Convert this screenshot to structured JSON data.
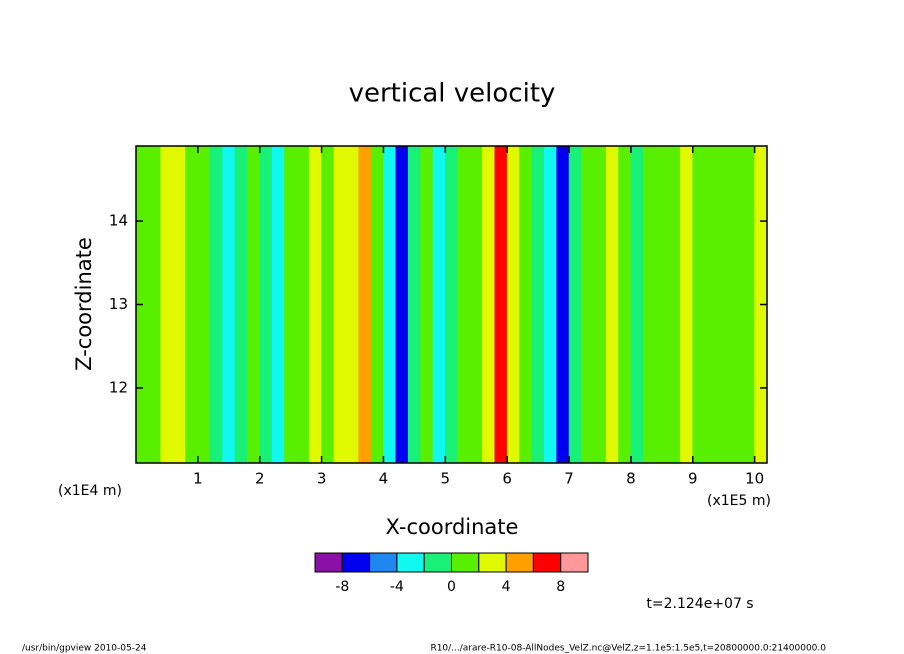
{
  "chart_data": {
    "type": "heatmap",
    "title": "vertical velocity",
    "x_label": "X-coordinate",
    "y_label": "Z-coordinate",
    "y_unit": "(x1E4 m)",
    "x_unit": "(x1E5 m)",
    "time_note": "t=2.124e+07 s",
    "footer_left": "/usr/bin/gpview  2010-05-24",
    "footer_right": "R10/.../arare-R10-08-AllNodes_VelZ.nc@VelZ,z=1.1e5:1.5e5,t=20800000.0:21400000.0",
    "xlim": [
      0,
      10.2
    ],
    "ylim": [
      11.1,
      14.9
    ],
    "xticks": [
      1,
      2,
      3,
      4,
      5,
      6,
      7,
      8,
      9,
      10
    ],
    "yticks": [
      12,
      13,
      14
    ],
    "x": [
      0.1,
      0.3,
      0.5,
      0.7,
      0.9,
      1.1,
      1.3,
      1.5,
      1.7,
      1.9,
      2.1,
      2.3,
      2.5,
      2.7,
      2.9,
      3.1,
      3.3,
      3.5,
      3.7,
      3.9,
      4.1,
      4.3,
      4.5,
      4.7,
      4.9,
      5.1,
      5.3,
      5.5,
      5.7,
      5.9,
      6.1,
      6.3,
      6.5,
      6.7,
      6.9,
      7.1,
      7.3,
      7.5,
      7.7,
      7.9,
      8.1,
      8.3,
      8.5,
      8.7,
      8.9,
      9.1,
      9.3,
      9.5,
      9.7,
      9.9,
      10.1
    ],
    "values": [
      0.5,
      1,
      2,
      3,
      1,
      0.5,
      -2,
      -2.5,
      -1,
      0.5,
      -1.5,
      -2.5,
      0.5,
      1,
      2.5,
      1.5,
      3.5,
      3,
      4.5,
      1,
      -3,
      -7,
      -1.5,
      0.5,
      -3,
      -1,
      0.5,
      1.5,
      3.5,
      6.5,
      3,
      0.5,
      -2,
      -2.5,
      -7,
      -1,
      0.5,
      1.5,
      3,
      1,
      -2,
      0.5,
      1,
      0.5,
      2.5,
      1,
      0.5,
      1.5,
      0.5,
      1,
      3
    ],
    "colorbar": {
      "levels": [
        -10,
        -8,
        -6,
        -4,
        -2,
        0,
        2,
        4,
        6,
        8,
        10
      ],
      "colors": [
        "#8a10a8",
        "#0000f0",
        "#1e88f0",
        "#10f8f0",
        "#18f078",
        "#58f000",
        "#e0f800",
        "#ffa000",
        "#ff0000",
        "#ff9898"
      ],
      "ticks": [
        -8,
        -4,
        0,
        4,
        8
      ]
    }
  }
}
